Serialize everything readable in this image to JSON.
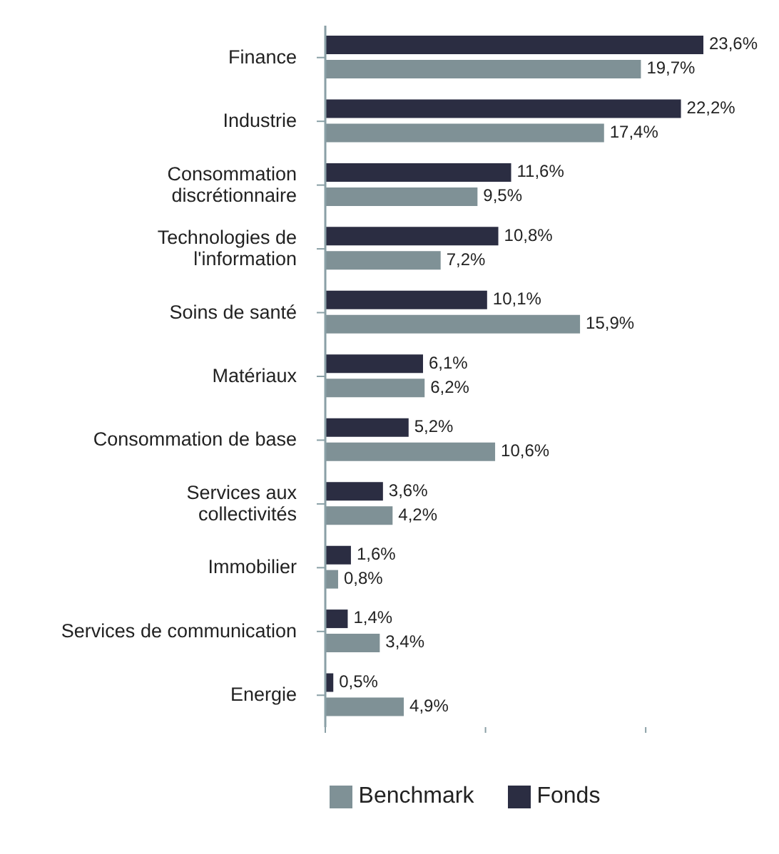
{
  "chart_data": {
    "type": "bar",
    "orientation": "horizontal",
    "categories": [
      "Finance",
      "Industrie",
      "Consommation\ndiscrétionnaire",
      "Technologies de\nl'information",
      "Soins de santé",
      "Matériaux",
      "Consommation de base",
      "Services aux\ncollectivités",
      "Immobilier",
      "Services de communication",
      "Energie"
    ],
    "series": [
      {
        "name": "Fonds",
        "color": "#2b2d42",
        "values": [
          23.6,
          22.2,
          11.6,
          10.8,
          10.1,
          6.1,
          5.2,
          3.6,
          1.6,
          1.4,
          0.5
        ],
        "value_labels": [
          "23,6%",
          "22,2%",
          "11,6%",
          "10,8%",
          "10,1%",
          "6,1%",
          "5,2%",
          "3,6%",
          "1,6%",
          "1,4%",
          "0,5%"
        ]
      },
      {
        "name": "Benchmark",
        "color": "#7f9196",
        "values": [
          19.7,
          17.4,
          9.5,
          7.2,
          15.9,
          6.2,
          10.6,
          4.2,
          0.8,
          3.4,
          4.9
        ],
        "value_labels": [
          "19,7%",
          "17,4%",
          "9,5%",
          "7,2%",
          "15,9%",
          "6,2%",
          "10,6%",
          "4,2%",
          "0,8%",
          "3,4%",
          "4,9%"
        ]
      }
    ],
    "xticks": [
      {
        "value": 0,
        "label": null
      },
      {
        "value": 10,
        "label": null
      },
      {
        "value": 20,
        "label": null
      }
    ],
    "tick_labels": "y",
    "legend": "bottom",
    "grid": false
  }
}
